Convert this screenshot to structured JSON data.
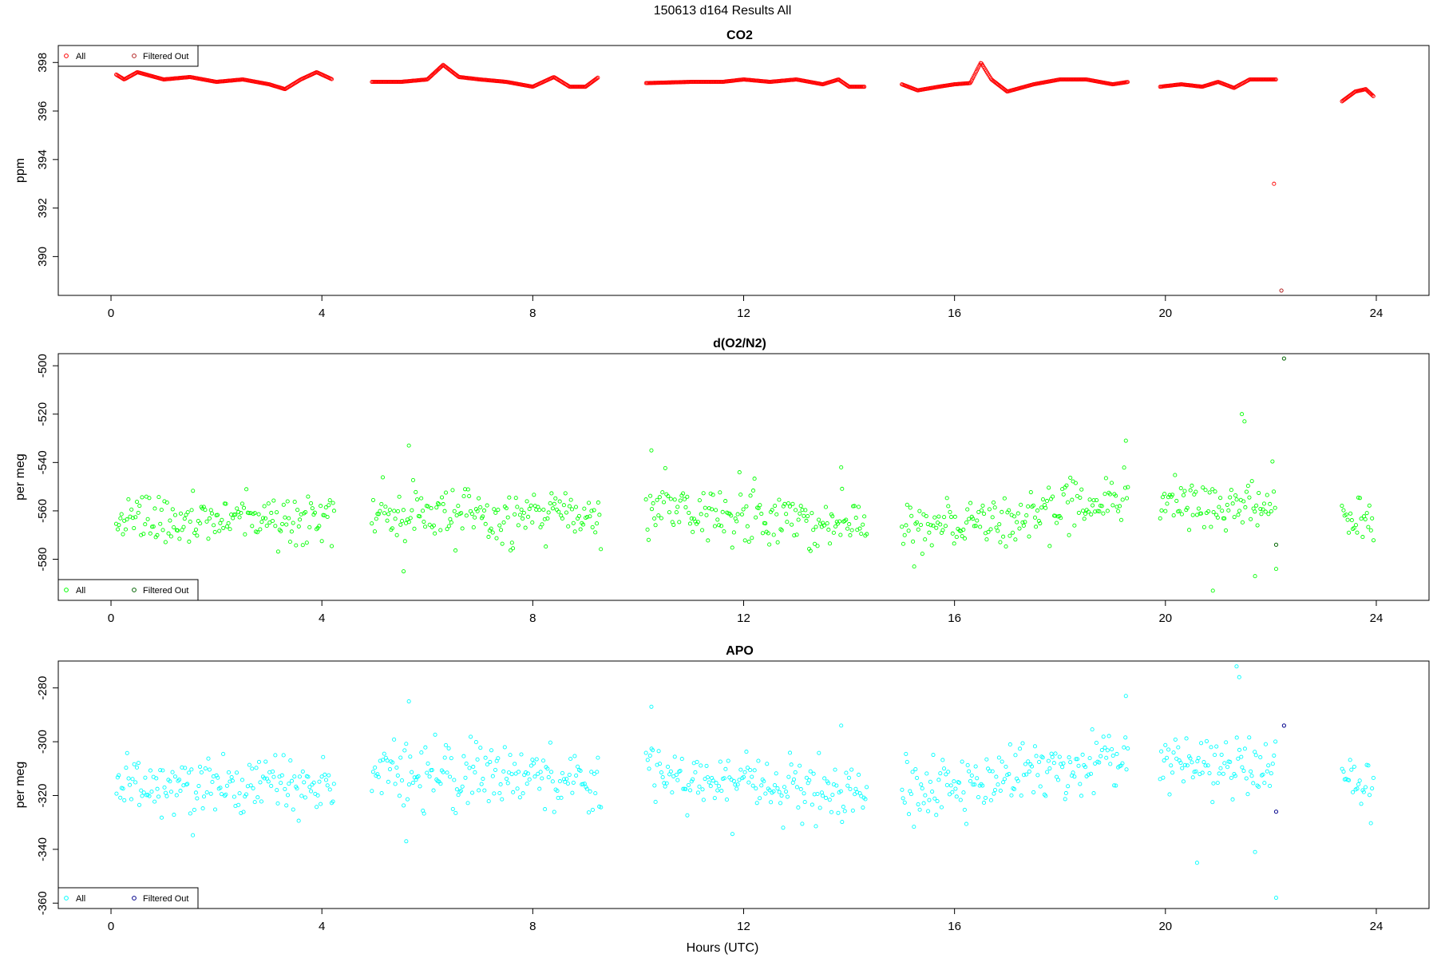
{
  "figure": {
    "title": "150613   d164   Results All",
    "xlabel": "Hours (UTC)"
  },
  "legend_labels": {
    "all": "All",
    "filtered": "Filtered Out"
  },
  "chart_data": [
    {
      "type": "scatter",
      "title": "CO2",
      "ylabel": "ppm",
      "xlim": [
        -1.0,
        25.0
      ],
      "ylim": [
        388.4,
        398.7
      ],
      "xticks": [
        0,
        4,
        8,
        12,
        16,
        20,
        24
      ],
      "yticks": [
        390,
        392,
        394,
        396,
        398
      ],
      "legend_position": "top-left",
      "colors": {
        "all": "#ff0000",
        "filtered": "#b22222"
      },
      "noise": 0,
      "segments": [
        {
          "start": 0.1,
          "end": 4.2,
          "points": [
            [
              0.1,
              397.5
            ],
            [
              0.25,
              397.3
            ],
            [
              0.5,
              397.6
            ],
            [
              1.0,
              397.3
            ],
            [
              1.5,
              397.4
            ],
            [
              2.0,
              397.2
            ],
            [
              2.5,
              397.3
            ],
            [
              3.0,
              397.1
            ],
            [
              3.3,
              396.9
            ],
            [
              3.6,
              397.3
            ],
            [
              3.9,
              397.6
            ],
            [
              4.2,
              397.3
            ]
          ]
        },
        {
          "start": 4.95,
          "end": 9.25,
          "points": [
            [
              4.95,
              397.2
            ],
            [
              5.5,
              397.2
            ],
            [
              6.0,
              397.3
            ],
            [
              6.3,
              397.9
            ],
            [
              6.6,
              397.4
            ],
            [
              7.0,
              397.3
            ],
            [
              7.5,
              397.2
            ],
            [
              8.0,
              397.0
            ],
            [
              8.4,
              397.4
            ],
            [
              8.7,
              397.0
            ],
            [
              9.0,
              397.0
            ],
            [
              9.25,
              397.4
            ]
          ]
        },
        {
          "start": 10.15,
          "end": 14.3,
          "points": [
            [
              10.15,
              397.15
            ],
            [
              11.0,
              397.2
            ],
            [
              11.6,
              397.2
            ],
            [
              12.0,
              397.3
            ],
            [
              12.5,
              397.2
            ],
            [
              13.0,
              397.3
            ],
            [
              13.5,
              397.1
            ],
            [
              13.8,
              397.3
            ],
            [
              14.0,
              397.0
            ],
            [
              14.3,
              397.0
            ]
          ]
        },
        {
          "start": 15.0,
          "end": 19.3,
          "points": [
            [
              15.0,
              397.1
            ],
            [
              15.3,
              396.85
            ],
            [
              15.7,
              397.0
            ],
            [
              16.0,
              397.1
            ],
            [
              16.3,
              397.15
            ],
            [
              16.5,
              398.0
            ],
            [
              16.7,
              397.3
            ],
            [
              17.0,
              396.8
            ],
            [
              17.5,
              397.1
            ],
            [
              18.0,
              397.3
            ],
            [
              18.5,
              397.3
            ],
            [
              19.0,
              397.1
            ],
            [
              19.3,
              397.2
            ]
          ]
        },
        {
          "start": 19.9,
          "end": 22.1,
          "points": [
            [
              19.9,
              397.0
            ],
            [
              20.3,
              397.1
            ],
            [
              20.7,
              397.0
            ],
            [
              21.0,
              397.2
            ],
            [
              21.3,
              396.95
            ],
            [
              21.6,
              397.3
            ],
            [
              22.1,
              397.3
            ]
          ]
        },
        {
          "start": 23.35,
          "end": 23.95,
          "points": [
            [
              23.35,
              396.4
            ],
            [
              23.6,
              396.8
            ],
            [
              23.8,
              396.9
            ],
            [
              23.95,
              396.6
            ]
          ]
        }
      ],
      "extra_points": [
        [
          22.06,
          393.0
        ]
      ],
      "filtered_points": [
        [
          22.2,
          388.6
        ]
      ]
    },
    {
      "type": "scatter",
      "title": "d(O2/N2)",
      "ylabel": "per meg",
      "xlim": [
        -1.0,
        25.0
      ],
      "ylim": [
        -597,
        -495
      ],
      "xticks": [
        0,
        4,
        8,
        12,
        16,
        20,
        24
      ],
      "yticks": [
        -500,
        -520,
        -540,
        -560,
        -580
      ],
      "legend_position": "bottom-left",
      "colors": {
        "all": "#00ff00",
        "filtered": "#006400"
      },
      "noise": 5.5,
      "segments": [
        {
          "start": 0.1,
          "end": 4.25,
          "points": [
            [
              0.1,
              -564
            ],
            [
              4.25,
              -564
            ]
          ]
        },
        {
          "start": 4.95,
          "end": 9.3,
          "points": [
            [
              4.95,
              -561
            ],
            [
              9.3,
              -562
            ]
          ]
        },
        {
          "start": 10.15,
          "end": 14.35,
          "points": [
            [
              10.15,
              -560
            ],
            [
              14.35,
              -565
            ]
          ]
        },
        {
          "start": 15.0,
          "end": 19.3,
          "points": [
            [
              15.0,
              -566
            ],
            [
              17.0,
              -563
            ],
            [
              19.3,
              -555
            ]
          ]
        },
        {
          "start": 19.9,
          "end": 22.1,
          "points": [
            [
              19.9,
              -558
            ],
            [
              22.1,
              -558
            ]
          ]
        },
        {
          "start": 23.35,
          "end": 23.95,
          "points": [
            [
              23.35,
              -560
            ],
            [
              23.95,
              -565
            ]
          ]
        }
      ],
      "extra_points": [
        [
          5.65,
          -533
        ],
        [
          5.55,
          -585
        ],
        [
          10.25,
          -535
        ],
        [
          13.85,
          -542
        ],
        [
          19.25,
          -531
        ],
        [
          20.9,
          -593
        ],
        [
          21.45,
          -520
        ],
        [
          21.5,
          -523
        ],
        [
          21.7,
          -587
        ],
        [
          22.1,
          -584
        ]
      ],
      "filtered_points": [
        [
          22.25,
          -497
        ],
        [
          22.1,
          -574
        ]
      ]
    },
    {
      "type": "scatter",
      "title": "APO",
      "ylabel": "per meg",
      "xlim": [
        -1.0,
        25.0
      ],
      "ylim": [
        -362,
        -270
      ],
      "xticks": [
        0,
        4,
        8,
        12,
        16,
        20,
        24
      ],
      "yticks": [
        -280,
        -300,
        -320,
        -340,
        -360
      ],
      "legend_position": "bottom-left",
      "colors": {
        "all": "#00ffff",
        "filtered": "#00008b"
      },
      "noise": 5.5,
      "segments": [
        {
          "start": 0.1,
          "end": 4.25,
          "points": [
            [
              0.1,
              -316
            ],
            [
              4.25,
              -316
            ]
          ]
        },
        {
          "start": 4.95,
          "end": 9.3,
          "points": [
            [
              4.95,
              -312
            ],
            [
              9.3,
              -314
            ]
          ]
        },
        {
          "start": 10.15,
          "end": 14.35,
          "points": [
            [
              10.15,
              -311
            ],
            [
              14.35,
              -320
            ]
          ]
        },
        {
          "start": 15.0,
          "end": 19.3,
          "points": [
            [
              15.0,
              -318
            ],
            [
              17.0,
              -313
            ],
            [
              19.3,
              -306
            ]
          ]
        },
        {
          "start": 19.9,
          "end": 22.1,
          "points": [
            [
              19.9,
              -308
            ],
            [
              22.1,
              -311
            ]
          ]
        },
        {
          "start": 23.35,
          "end": 23.95,
          "points": [
            [
              23.35,
              -313
            ],
            [
              23.95,
              -318
            ]
          ]
        }
      ],
      "extra_points": [
        [
          5.65,
          -285
        ],
        [
          5.6,
          -337
        ],
        [
          10.25,
          -287
        ],
        [
          13.85,
          -294
        ],
        [
          19.25,
          -283
        ],
        [
          20.6,
          -345
        ],
        [
          21.35,
          -272
        ],
        [
          21.4,
          -276
        ],
        [
          21.7,
          -341
        ],
        [
          22.1,
          -358
        ]
      ],
      "filtered_points": [
        [
          22.25,
          -294
        ],
        [
          22.1,
          -326
        ]
      ]
    }
  ]
}
